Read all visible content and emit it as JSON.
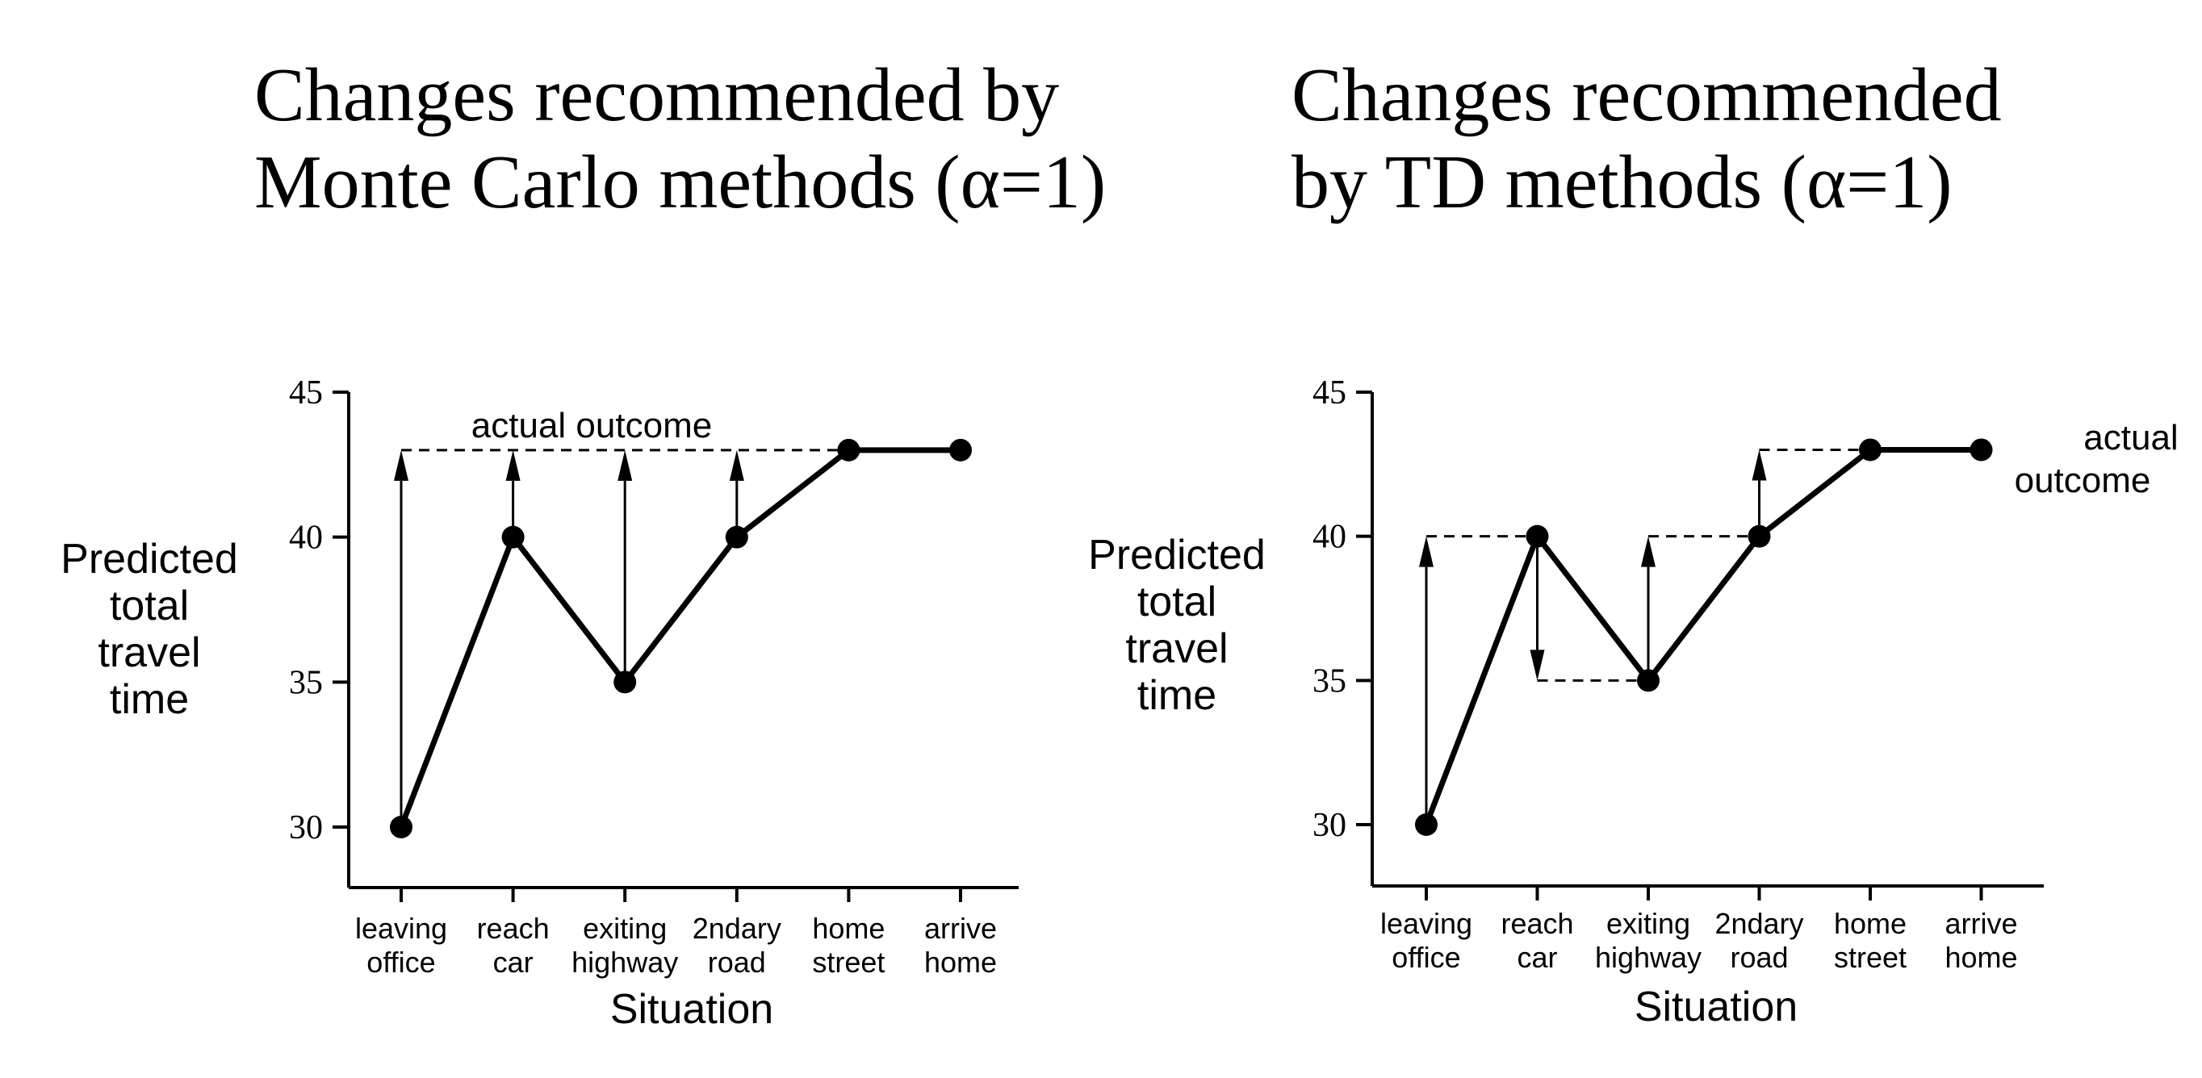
{
  "titles": {
    "left": "Changes recommended by\nMonte Carlo methods (α=1)",
    "right": "Changes recommended\nby TD methods (α=1)"
  },
  "chart_data": [
    {
      "type": "line",
      "name": "monte-carlo",
      "title": "Changes recommended by Monte Carlo methods (α=1)",
      "xlabel": "Situation",
      "ylabel": [
        "Predicted",
        "total",
        "travel",
        "time"
      ],
      "categories": [
        [
          "leaving",
          "office"
        ],
        [
          "reach",
          "car"
        ],
        [
          "exiting",
          "highway"
        ],
        [
          "2ndary",
          "road"
        ],
        [
          "home",
          "street"
        ],
        [
          "arrive",
          "home"
        ]
      ],
      "values": [
        30,
        40,
        35,
        40,
        43,
        43
      ],
      "yticks": [
        30,
        35,
        40,
        45
      ],
      "ylim": [
        28,
        45
      ],
      "actual_outcome": 43,
      "outcome_label": [
        "actual outcome"
      ],
      "outcome_label_position": "top",
      "arrows": [
        {
          "index": 0,
          "from": 30,
          "to": 43
        },
        {
          "index": 1,
          "from": 40,
          "to": 43
        },
        {
          "index": 2,
          "from": 35,
          "to": 43
        },
        {
          "index": 3,
          "from": 40,
          "to": 43
        }
      ],
      "dashed": [
        {
          "from_index": 0,
          "to_index": 5,
          "y": 43
        }
      ]
    },
    {
      "type": "line",
      "name": "td",
      "title": "Changes recommended by TD methods (α=1)",
      "xlabel": "Situation",
      "ylabel": [
        "Predicted",
        "total",
        "travel",
        "time"
      ],
      "categories": [
        [
          "leaving",
          "office"
        ],
        [
          "reach",
          "car"
        ],
        [
          "exiting",
          "highway"
        ],
        [
          "2ndary",
          "road"
        ],
        [
          "home",
          "street"
        ],
        [
          "arrive",
          "home"
        ]
      ],
      "values": [
        30,
        40,
        35,
        40,
        43,
        43
      ],
      "yticks": [
        30,
        35,
        40,
        45
      ],
      "ylim": [
        28,
        45
      ],
      "actual_outcome": 43,
      "outcome_label": [
        "actual",
        "outcome"
      ],
      "outcome_label_position": "right",
      "arrows": [
        {
          "index": 0,
          "from": 30,
          "to": 40
        },
        {
          "index": 1,
          "from": 40,
          "to": 35
        },
        {
          "index": 2,
          "from": 35,
          "to": 40
        },
        {
          "index": 3,
          "from": 40,
          "to": 43
        }
      ],
      "dashed": [
        {
          "from_index": 0,
          "to_index": 1,
          "y": 40
        },
        {
          "from_index": 1,
          "to_index": 2,
          "y": 35
        },
        {
          "from_index": 2,
          "to_index": 3,
          "y": 40
        },
        {
          "from_index": 3,
          "to_index": 5,
          "y": 43
        }
      ]
    }
  ]
}
